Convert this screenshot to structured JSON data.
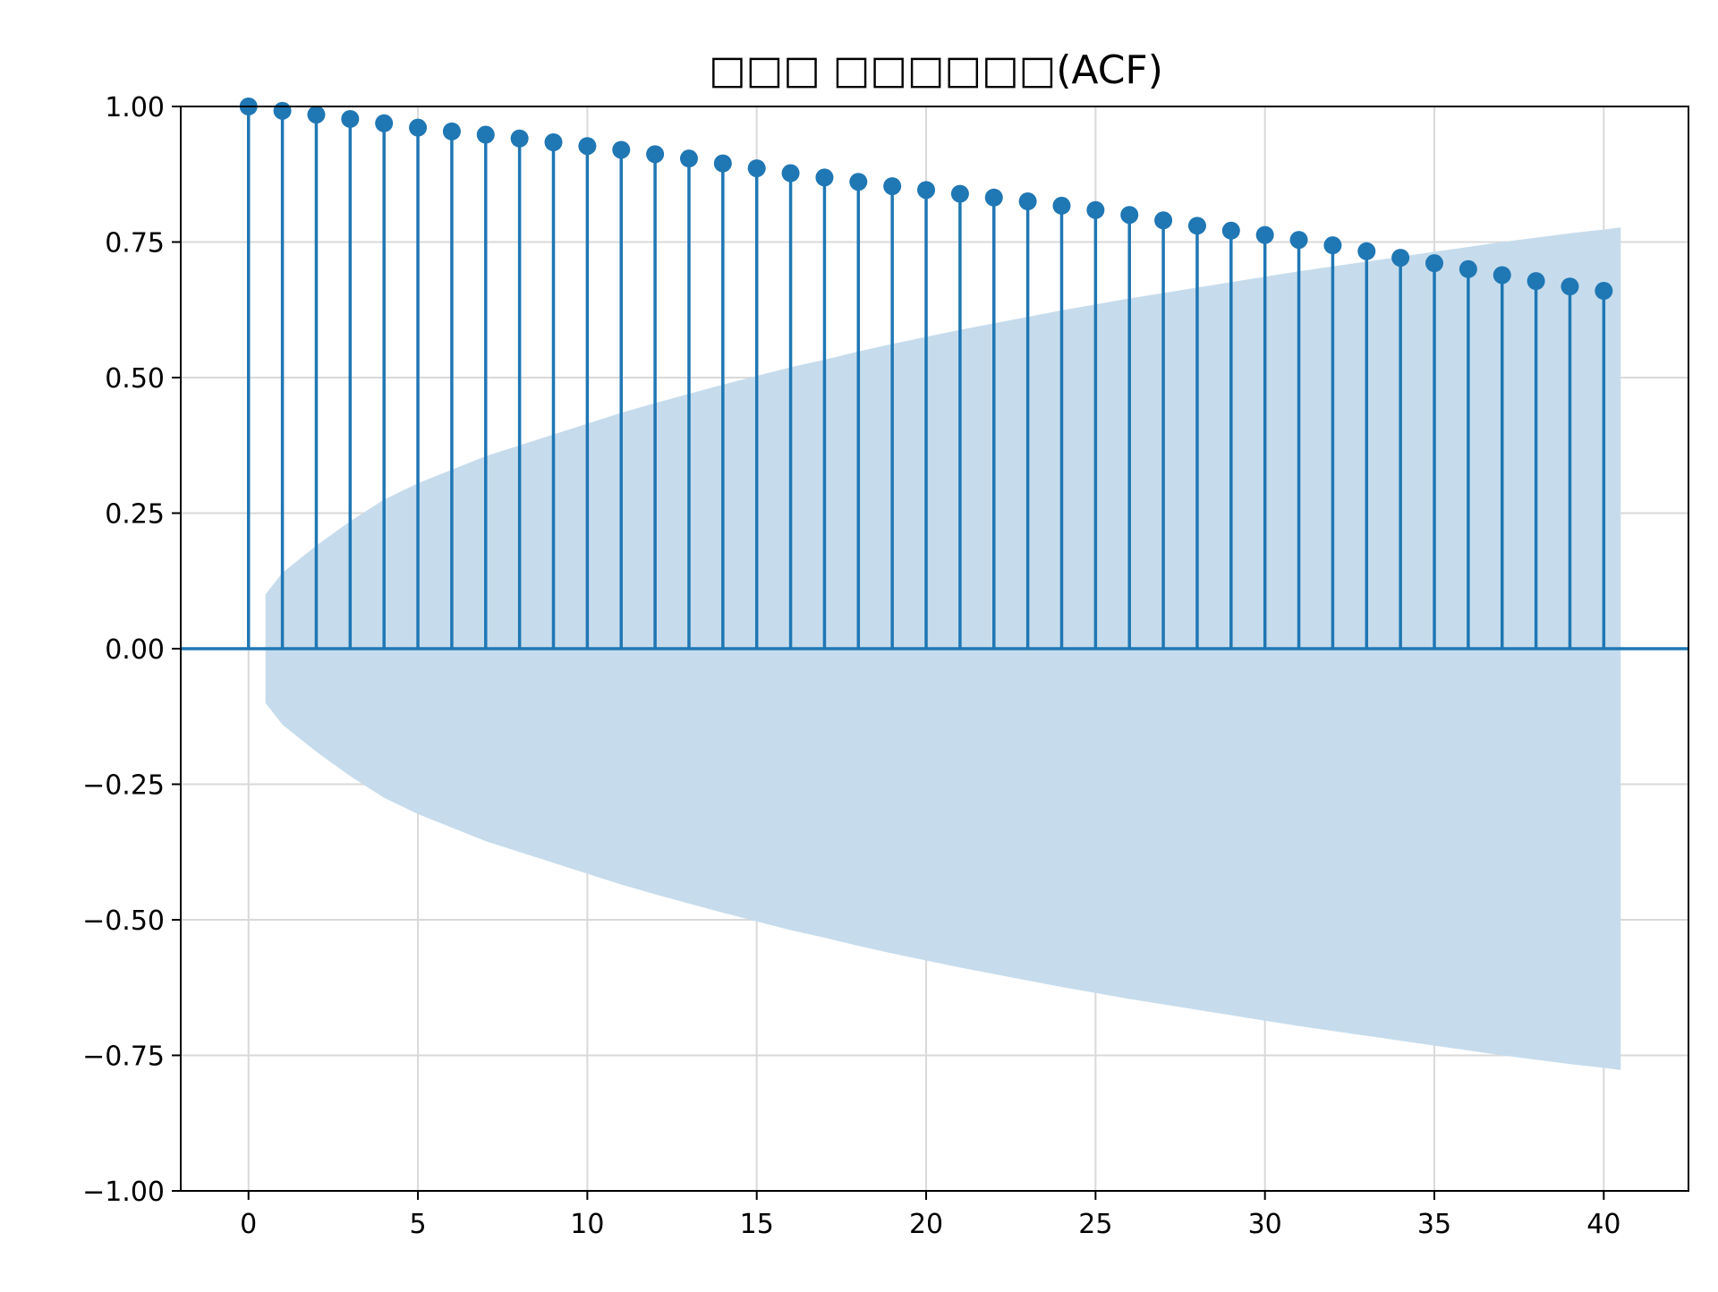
{
  "chart_data": {
    "type": "stem",
    "title": "□□□ □□□□□□(ACF)",
    "xlabel": "",
    "ylabel": "",
    "xlim": [
      -2,
      42.5
    ],
    "ylim": [
      -1.0,
      1.0
    ],
    "x_ticks": [
      0,
      5,
      10,
      15,
      20,
      25,
      30,
      35,
      40
    ],
    "x_tick_labels": [
      "0",
      "5",
      "10",
      "15",
      "20",
      "25",
      "30",
      "35",
      "40"
    ],
    "y_ticks": [
      1.0,
      0.75,
      0.5,
      0.25,
      0.0,
      -0.25,
      -0.5,
      -0.75,
      -1.0
    ],
    "y_tick_labels": [
      "1.00",
      "0.75",
      "0.50",
      "0.25",
      "0.00",
      "−0.25",
      "−0.50",
      "−0.75",
      "−1.00"
    ],
    "grid": true,
    "legend": "none",
    "colors": {
      "stem": "#1f77b4",
      "confidence_band": "#c6dcec",
      "grid": "#d9d9d9",
      "axes": "#000000"
    },
    "lags": [
      0,
      1,
      2,
      3,
      4,
      5,
      6,
      7,
      8,
      9,
      10,
      11,
      12,
      13,
      14,
      15,
      16,
      17,
      18,
      19,
      20,
      21,
      22,
      23,
      24,
      25,
      26,
      27,
      28,
      29,
      30,
      31,
      32,
      33,
      34,
      35,
      36,
      37,
      38,
      39,
      40
    ],
    "acf": [
      1.0,
      0.992,
      0.985,
      0.977,
      0.969,
      0.961,
      0.954,
      0.948,
      0.941,
      0.934,
      0.927,
      0.92,
      0.912,
      0.904,
      0.895,
      0.886,
      0.877,
      0.869,
      0.861,
      0.853,
      0.846,
      0.839,
      0.832,
      0.825,
      0.817,
      0.809,
      0.8,
      0.79,
      0.78,
      0.771,
      0.763,
      0.754,
      0.744,
      0.733,
      0.721,
      0.711,
      0.7,
      0.689,
      0.678,
      0.668,
      0.66
    ],
    "confidence_band": {
      "x": [
        0.5,
        1,
        2,
        3,
        4,
        5,
        6,
        7,
        8,
        9,
        10,
        11,
        12,
        13,
        14,
        15,
        16,
        17,
        18,
        19,
        20,
        21,
        22,
        23,
        24,
        25,
        26,
        27,
        28,
        29,
        30,
        31,
        32,
        33,
        34,
        35,
        36,
        37,
        38,
        39,
        40,
        40.5
      ],
      "upper": [
        0.1,
        0.14,
        0.19,
        0.235,
        0.275,
        0.305,
        0.33,
        0.355,
        0.375,
        0.395,
        0.415,
        0.435,
        0.453,
        0.47,
        0.487,
        0.503,
        0.519,
        0.533,
        0.548,
        0.562,
        0.575,
        0.588,
        0.6,
        0.612,
        0.624,
        0.635,
        0.646,
        0.656,
        0.666,
        0.676,
        0.686,
        0.696,
        0.705,
        0.714,
        0.723,
        0.732,
        0.741,
        0.75,
        0.758,
        0.766,
        0.773,
        0.777
      ]
    }
  }
}
